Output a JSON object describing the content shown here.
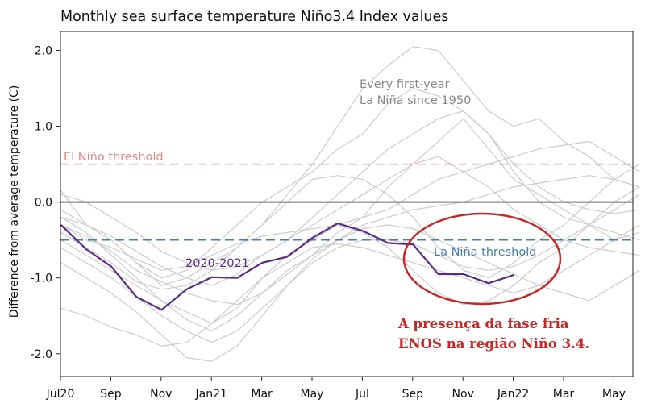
{
  "chart_data": {
    "type": "line",
    "title": "Monthly sea surface temperature Niño3.4 Index values",
    "xlabel": "",
    "ylabel": "Difference from average temperature (C)",
    "x_tick_labels": [
      "Jul20",
      "Sep",
      "Nov",
      "Jan21",
      "Mar",
      "May",
      "Jul",
      "Sep",
      "Nov",
      "Jan22",
      "Mar",
      "May"
    ],
    "y_tick_labels": [
      "-2.0",
      "-1.0",
      "0.0",
      "1.0",
      "2.0"
    ],
    "ylim": [
      -2.3,
      2.25
    ],
    "grid": false,
    "reference_lines": [
      {
        "label": "El Niño threshold",
        "value": 0.5,
        "color": "#e08a88",
        "style": "dashed"
      },
      {
        "label": "",
        "value": 0.0,
        "color": "#707070",
        "style": "solid"
      },
      {
        "label": "La Niña threshold",
        "value": -0.5,
        "color": "#4b7fa6",
        "style": "dashed"
      }
    ],
    "highlight_series": {
      "name": "2020-2021",
      "color": "#5b2c83",
      "values": [
        -0.3,
        -0.62,
        -0.85,
        -1.25,
        -1.42,
        -1.15,
        -0.99,
        -1.0,
        -0.8,
        -0.72,
        -0.47,
        -0.28,
        -0.38,
        -0.54,
        -0.56,
        -0.95,
        -0.95,
        -1.07,
        -0.96
      ]
    },
    "background_series_label": "Every first-year\nLa Niña since 1950",
    "background_color": "#cccccc",
    "background_series": [
      [
        0.15,
        -0.3,
        -0.5,
        -0.8,
        -1.1,
        -1.0,
        -0.8,
        -0.6,
        -0.3,
        0.1,
        0.5,
        1.0,
        1.5,
        1.8,
        2.05,
        2.0,
        1.6,
        1.2,
        1.0,
        1.1,
        0.8,
        0.6,
        0.3,
        0.2
      ],
      [
        -0.2,
        -0.4,
        -0.7,
        -1.0,
        -1.3,
        -1.55,
        -1.7,
        -1.5,
        -1.2,
        -0.9,
        -0.7,
        -0.4,
        -0.2,
        0.2,
        0.5,
        0.8,
        1.1,
        0.7,
        0.3,
        0.1,
        -0.1,
        -0.3,
        -0.5,
        -0.4
      ],
      [
        -0.1,
        -0.3,
        -0.5,
        -0.8,
        -1.0,
        -0.9,
        -0.6,
        -0.3,
        0.0,
        0.2,
        0.4,
        0.7,
        0.9,
        1.3,
        1.5,
        1.4,
        1.2,
        0.9,
        0.4,
        0.0,
        -0.2,
        -0.3,
        -0.4,
        -0.5
      ],
      [
        -0.5,
        -0.7,
        -0.9,
        -1.1,
        -1.3,
        -1.45,
        -1.6,
        -1.4,
        -1.0,
        -0.7,
        -0.5,
        -0.3,
        -0.4,
        -0.6,
        -0.9,
        -1.2,
        -1.35,
        -1.3,
        -1.1,
        -0.8,
        -0.6,
        -0.3,
        0.0,
        0.2
      ],
      [
        -0.4,
        -0.6,
        -0.8,
        -1.05,
        -1.15,
        -1.1,
        -0.9,
        -0.6,
        -0.3,
        0.0,
        0.3,
        0.35,
        0.3,
        0.1,
        -0.2,
        -0.6,
        -0.9,
        -1.0,
        -0.8,
        -0.5,
        -0.3,
        0.0,
        0.3,
        0.5
      ],
      [
        -0.3,
        -0.5,
        -0.6,
        -0.75,
        -0.9,
        -0.85,
        -0.7,
        -0.55,
        -0.45,
        -0.4,
        -0.35,
        -0.3,
        -0.2,
        -0.1,
        0.1,
        0.3,
        0.4,
        0.5,
        0.6,
        0.7,
        0.75,
        0.8,
        0.6,
        0.4
      ],
      [
        -0.6,
        -0.8,
        -1.0,
        -1.25,
        -1.5,
        -1.7,
        -1.85,
        -1.7,
        -1.4,
        -1.1,
        -0.8,
        -0.6,
        -0.5,
        -0.5,
        -0.55,
        -0.7,
        -0.85,
        -0.9,
        -0.85,
        -0.7,
        -0.5,
        -0.3,
        -0.1,
        0.1
      ],
      [
        -0.2,
        -0.3,
        -0.45,
        -0.65,
        -0.85,
        -1.0,
        -1.1,
        -0.95,
        -0.7,
        -0.5,
        -0.3,
        -0.1,
        0.1,
        0.3,
        0.5,
        0.6,
        0.4,
        0.2,
        -0.1,
        -0.3,
        -0.5,
        -0.6,
        -0.65,
        -0.7
      ],
      [
        -0.8,
        -1.0,
        -1.2,
        -1.45,
        -1.75,
        -2.05,
        -2.1,
        -1.9,
        -1.5,
        -1.1,
        -0.75,
        -0.5,
        -0.3,
        -0.2,
        -0.1,
        -0.05,
        0.0,
        0.1,
        0.2,
        0.25,
        0.3,
        0.35,
        0.3,
        0.2
      ],
      [
        -1.4,
        -1.5,
        -1.65,
        -1.75,
        -1.9,
        -1.85,
        -1.6,
        -1.3,
        -1.0,
        -0.8,
        -0.6,
        -0.55,
        -0.6,
        -0.7,
        -0.8,
        -0.9,
        -1.0,
        -1.1,
        -1.2,
        -1.1,
        -0.9,
        -0.7,
        -0.5,
        -0.3
      ],
      [
        0.1,
        0.0,
        -0.2,
        -0.4,
        -0.65,
        -0.8,
        -0.9,
        -0.85,
        -0.7,
        -0.5,
        -0.2,
        0.1,
        0.4,
        0.7,
        0.9,
        1.1,
        1.2,
        0.9,
        0.5,
        0.2,
        0.0,
        -0.1,
        -0.15,
        -0.1
      ],
      [
        -0.3,
        -0.45,
        -0.65,
        -0.9,
        -1.05,
        -1.2,
        -1.3,
        -1.35,
        -1.2,
        -0.95,
        -0.7,
        -0.5,
        -0.35,
        -0.3,
        -0.35,
        -0.5,
        -0.65,
        -0.8,
        -0.95,
        -1.1,
        -1.2,
        -1.3,
        -1.1,
        -0.9
      ]
    ]
  },
  "annotation": {
    "line1": "A presença da fase fria",
    "line2": "ENOS na região Niño 3.4."
  },
  "colors": {
    "highlight": "#5b2c83",
    "el_nino": "#e08a88",
    "la_nina": "#4b7fa6",
    "zero_line": "#707070",
    "annotation": "#c62828",
    "background_lines": "#cccccc",
    "label_gray": "#888888"
  }
}
